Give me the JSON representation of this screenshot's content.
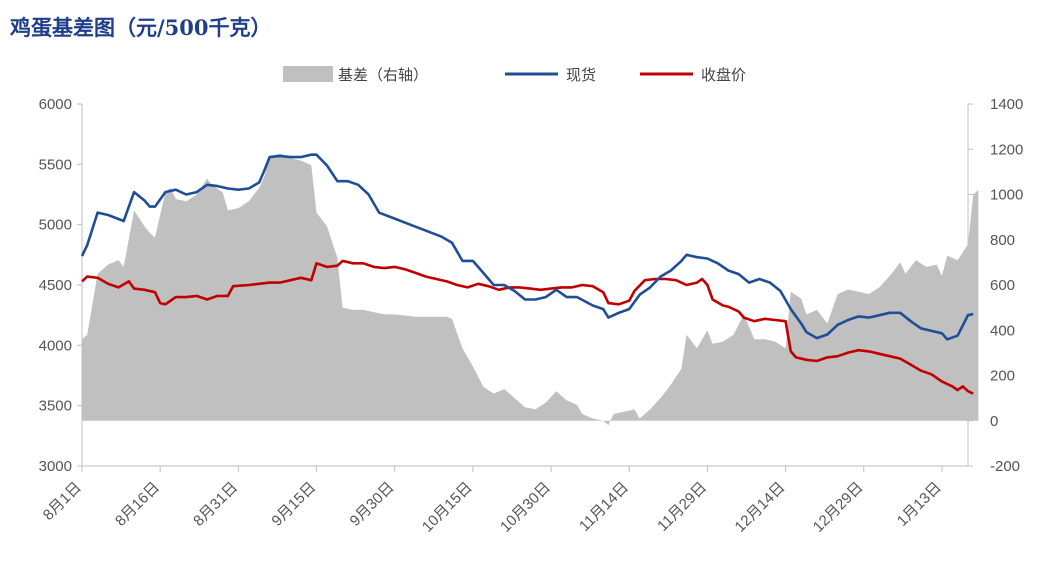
{
  "chart_data": {
    "type": "line",
    "title": "鸡蛋基差图（元/500千克）",
    "legend": [
      "基差（右轴）",
      "现货",
      "收盘价"
    ],
    "legend_position": "top-center",
    "colors": {
      "basis": "#c0c0c0",
      "spot": "#1f4e96",
      "close": "#c00000"
    },
    "y_left": {
      "min": 3000,
      "max": 6000,
      "ticks": [
        "3000",
        "3500",
        "4000",
        "4500",
        "5000",
        "5500",
        "6000"
      ]
    },
    "y_right": {
      "min": -200,
      "max": 1400,
      "ticks": [
        "-200",
        "0",
        "200",
        "400",
        "600",
        "800",
        "1000",
        "1200",
        "1400"
      ]
    },
    "x_ticks": [
      "8月1日",
      "8月16日",
      "8月31日",
      "9月15日",
      "9月30日",
      "10月15日",
      "10月30日",
      "11月14日",
      "11月29日",
      "12月14日",
      "12月29日",
      "1月13日"
    ],
    "x_tick_days": [
      0,
      15,
      30,
      45,
      60,
      75,
      90,
      105,
      120,
      135,
      150,
      165
    ],
    "x_max_day": 170,
    "grid": false,
    "series": [
      {
        "name": "现货",
        "axis": "left",
        "points": [
          [
            0,
            4740
          ],
          [
            1,
            4830
          ],
          [
            3,
            5100
          ],
          [
            5,
            5080
          ],
          [
            8,
            5030
          ],
          [
            10,
            5270
          ],
          [
            12,
            5200
          ],
          [
            13,
            5150
          ],
          [
            14,
            5150
          ],
          [
            16,
            5270
          ],
          [
            18,
            5290
          ],
          [
            20,
            5250
          ],
          [
            22,
            5270
          ],
          [
            24,
            5330
          ],
          [
            26,
            5320
          ],
          [
            28,
            5300
          ],
          [
            30,
            5290
          ],
          [
            32,
            5300
          ],
          [
            34,
            5350
          ],
          [
            35,
            5450
          ],
          [
            36,
            5560
          ],
          [
            38,
            5570
          ],
          [
            40,
            5560
          ],
          [
            42,
            5560
          ],
          [
            44,
            5580
          ],
          [
            45,
            5580
          ],
          [
            47,
            5490
          ],
          [
            49,
            5360
          ],
          [
            51,
            5360
          ],
          [
            53,
            5330
          ],
          [
            55,
            5250
          ],
          [
            57,
            5100
          ],
          [
            60,
            5050
          ],
          [
            63,
            5000
          ],
          [
            66,
            4950
          ],
          [
            69,
            4900
          ],
          [
            71,
            4850
          ],
          [
            73,
            4700
          ],
          [
            75,
            4700
          ],
          [
            77,
            4600
          ],
          [
            79,
            4500
          ],
          [
            81,
            4500
          ],
          [
            83,
            4450
          ],
          [
            85,
            4380
          ],
          [
            87,
            4380
          ],
          [
            89,
            4400
          ],
          [
            91,
            4460
          ],
          [
            93,
            4400
          ],
          [
            95,
            4400
          ],
          [
            98,
            4330
          ],
          [
            100,
            4300
          ],
          [
            101,
            4230
          ],
          [
            103,
            4270
          ],
          [
            105,
            4300
          ],
          [
            107,
            4420
          ],
          [
            109,
            4480
          ],
          [
            111,
            4570
          ],
          [
            113,
            4620
          ],
          [
            115,
            4700
          ],
          [
            116,
            4750
          ],
          [
            118,
            4730
          ],
          [
            120,
            4720
          ],
          [
            122,
            4680
          ],
          [
            124,
            4620
          ],
          [
            126,
            4590
          ],
          [
            128,
            4520
          ],
          [
            130,
            4550
          ],
          [
            132,
            4520
          ],
          [
            134,
            4450
          ],
          [
            136,
            4300
          ],
          [
            138,
            4180
          ],
          [
            139,
            4110
          ],
          [
            141,
            4060
          ],
          [
            143,
            4090
          ],
          [
            145,
            4170
          ],
          [
            147,
            4210
          ],
          [
            149,
            4240
          ],
          [
            151,
            4230
          ],
          [
            153,
            4250
          ],
          [
            155,
            4270
          ],
          [
            157,
            4270
          ],
          [
            159,
            4200
          ],
          [
            161,
            4140
          ],
          [
            163,
            4120
          ],
          [
            165,
            4100
          ],
          [
            166,
            4050
          ],
          [
            168,
            4080
          ],
          [
            170,
            4250
          ],
          [
            171,
            4260
          ]
        ]
      },
      {
        "name": "收盘价",
        "axis": "left",
        "points": [
          [
            0,
            4530
          ],
          [
            1,
            4570
          ],
          [
            3,
            4560
          ],
          [
            5,
            4510
          ],
          [
            7,
            4480
          ],
          [
            9,
            4530
          ],
          [
            10,
            4470
          ],
          [
            12,
            4460
          ],
          [
            14,
            4440
          ],
          [
            15,
            4350
          ],
          [
            16,
            4340
          ],
          [
            18,
            4400
          ],
          [
            20,
            4400
          ],
          [
            22,
            4410
          ],
          [
            24,
            4380
          ],
          [
            26,
            4410
          ],
          [
            28,
            4410
          ],
          [
            29,
            4490
          ],
          [
            32,
            4500
          ],
          [
            34,
            4510
          ],
          [
            36,
            4520
          ],
          [
            38,
            4520
          ],
          [
            40,
            4540
          ],
          [
            42,
            4560
          ],
          [
            44,
            4540
          ],
          [
            45,
            4680
          ],
          [
            47,
            4650
          ],
          [
            49,
            4660
          ],
          [
            50,
            4700
          ],
          [
            52,
            4680
          ],
          [
            54,
            4680
          ],
          [
            56,
            4650
          ],
          [
            58,
            4640
          ],
          [
            60,
            4650
          ],
          [
            62,
            4630
          ],
          [
            64,
            4600
          ],
          [
            66,
            4570
          ],
          [
            68,
            4550
          ],
          [
            70,
            4530
          ],
          [
            72,
            4500
          ],
          [
            74,
            4480
          ],
          [
            76,
            4510
          ],
          [
            78,
            4490
          ],
          [
            80,
            4460
          ],
          [
            82,
            4480
          ],
          [
            84,
            4480
          ],
          [
            86,
            4470
          ],
          [
            88,
            4460
          ],
          [
            90,
            4470
          ],
          [
            92,
            4480
          ],
          [
            94,
            4480
          ],
          [
            96,
            4500
          ],
          [
            98,
            4490
          ],
          [
            100,
            4440
          ],
          [
            101,
            4350
          ],
          [
            103,
            4340
          ],
          [
            105,
            4370
          ],
          [
            106,
            4450
          ],
          [
            108,
            4540
          ],
          [
            110,
            4550
          ],
          [
            112,
            4550
          ],
          [
            114,
            4540
          ],
          [
            116,
            4500
          ],
          [
            118,
            4520
          ],
          [
            119,
            4550
          ],
          [
            120,
            4500
          ],
          [
            121,
            4380
          ],
          [
            123,
            4330
          ],
          [
            124,
            4320
          ],
          [
            126,
            4280
          ],
          [
            127,
            4230
          ],
          [
            129,
            4200
          ],
          [
            131,
            4220
          ],
          [
            133,
            4210
          ],
          [
            135,
            4200
          ],
          [
            136,
            3950
          ],
          [
            137,
            3900
          ],
          [
            139,
            3880
          ],
          [
            141,
            3870
          ],
          [
            143,
            3900
          ],
          [
            145,
            3910
          ],
          [
            147,
            3940
          ],
          [
            149,
            3960
          ],
          [
            151,
            3950
          ],
          [
            153,
            3930
          ],
          [
            155,
            3910
          ],
          [
            157,
            3890
          ],
          [
            159,
            3840
          ],
          [
            161,
            3790
          ],
          [
            163,
            3760
          ],
          [
            165,
            3700
          ],
          [
            167,
            3660
          ],
          [
            168,
            3630
          ],
          [
            169,
            3660
          ],
          [
            170,
            3620
          ],
          [
            171,
            3600
          ]
        ]
      },
      {
        "name": "基差（右轴）",
        "axis": "right",
        "type": "area",
        "points": [
          [
            0,
            360
          ],
          [
            1,
            380
          ],
          [
            3,
            650
          ],
          [
            5,
            690
          ],
          [
            7,
            710
          ],
          [
            8,
            680
          ],
          [
            10,
            930
          ],
          [
            12,
            860
          ],
          [
            13,
            830
          ],
          [
            14,
            810
          ],
          [
            16,
            1010
          ],
          [
            17,
            1030
          ],
          [
            18,
            980
          ],
          [
            20,
            970
          ],
          [
            22,
            1000
          ],
          [
            24,
            1070
          ],
          [
            25,
            1040
          ],
          [
            27,
            1010
          ],
          [
            28,
            930
          ],
          [
            30,
            940
          ],
          [
            32,
            970
          ],
          [
            34,
            1030
          ],
          [
            35,
            1080
          ],
          [
            36,
            1170
          ],
          [
            38,
            1180
          ],
          [
            40,
            1160
          ],
          [
            42,
            1150
          ],
          [
            44,
            1130
          ],
          [
            45,
            920
          ],
          [
            47,
            860
          ],
          [
            49,
            720
          ],
          [
            50,
            500
          ],
          [
            52,
            490
          ],
          [
            54,
            490
          ],
          [
            56,
            480
          ],
          [
            58,
            470
          ],
          [
            60,
            470
          ],
          [
            62,
            465
          ],
          [
            64,
            460
          ],
          [
            66,
            460
          ],
          [
            68,
            460
          ],
          [
            70,
            460
          ],
          [
            71,
            450
          ],
          [
            73,
            320
          ],
          [
            75,
            240
          ],
          [
            77,
            150
          ],
          [
            79,
            120
          ],
          [
            81,
            140
          ],
          [
            83,
            100
          ],
          [
            85,
            60
          ],
          [
            87,
            50
          ],
          [
            89,
            80
          ],
          [
            91,
            130
          ],
          [
            93,
            90
          ],
          [
            95,
            70
          ],
          [
            96,
            30
          ],
          [
            98,
            10
          ],
          [
            100,
            0
          ],
          [
            101,
            -20
          ],
          [
            102,
            30
          ],
          [
            104,
            40
          ],
          [
            106,
            50
          ],
          [
            107,
            10
          ],
          [
            109,
            50
          ],
          [
            111,
            100
          ],
          [
            113,
            160
          ],
          [
            115,
            230
          ],
          [
            116,
            380
          ],
          [
            118,
            320
          ],
          [
            120,
            400
          ],
          [
            121,
            340
          ],
          [
            123,
            350
          ],
          [
            125,
            380
          ],
          [
            127,
            470
          ],
          [
            129,
            360
          ],
          [
            131,
            360
          ],
          [
            133,
            350
          ],
          [
            135,
            320
          ],
          [
            136,
            570
          ],
          [
            138,
            540
          ],
          [
            139,
            470
          ],
          [
            141,
            490
          ],
          [
            143,
            430
          ],
          [
            145,
            560
          ],
          [
            147,
            580
          ],
          [
            149,
            570
          ],
          [
            151,
            560
          ],
          [
            153,
            590
          ],
          [
            155,
            640
          ],
          [
            157,
            700
          ],
          [
            158,
            650
          ],
          [
            160,
            710
          ],
          [
            162,
            680
          ],
          [
            164,
            690
          ],
          [
            165,
            640
          ],
          [
            166,
            730
          ],
          [
            168,
            710
          ],
          [
            170,
            780
          ],
          [
            171,
            1000
          ],
          [
            172,
            1020
          ]
        ]
      }
    ]
  }
}
